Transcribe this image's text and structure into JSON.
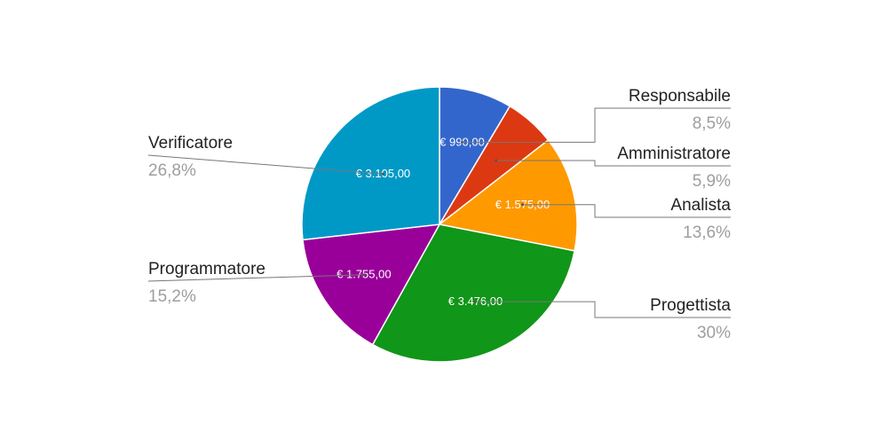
{
  "chart_data": {
    "type": "pie",
    "title": "",
    "start_angle_deg": 0,
    "direction": "clockwise",
    "legend": "labeled",
    "slices": [
      {
        "label": "Responsabile",
        "value": 990,
        "value_label": "€ 990,00",
        "percent_label": "8,5%",
        "color": "#3366cc"
      },
      {
        "label": "Amministratore",
        "value": 690,
        "value_label": "",
        "percent_label": "5,9%",
        "color": "#dc3912"
      },
      {
        "label": "Analista",
        "value": 1575,
        "value_label": "€ 1.575,00",
        "percent_label": "13,6%",
        "color": "#ff9900"
      },
      {
        "label": "Progettista",
        "value": 3476,
        "value_label": "€ 3.476,00",
        "percent_label": "30%",
        "color": "#109618"
      },
      {
        "label": "Programmatore",
        "value": 1755,
        "value_label": "€ 1.755,00",
        "percent_label": "15,2%",
        "color": "#990099"
      },
      {
        "label": "Verificatore",
        "value": 3105,
        "value_label": "€ 3.105,00",
        "percent_label": "26,8%",
        "color": "#0099c6"
      }
    ]
  }
}
